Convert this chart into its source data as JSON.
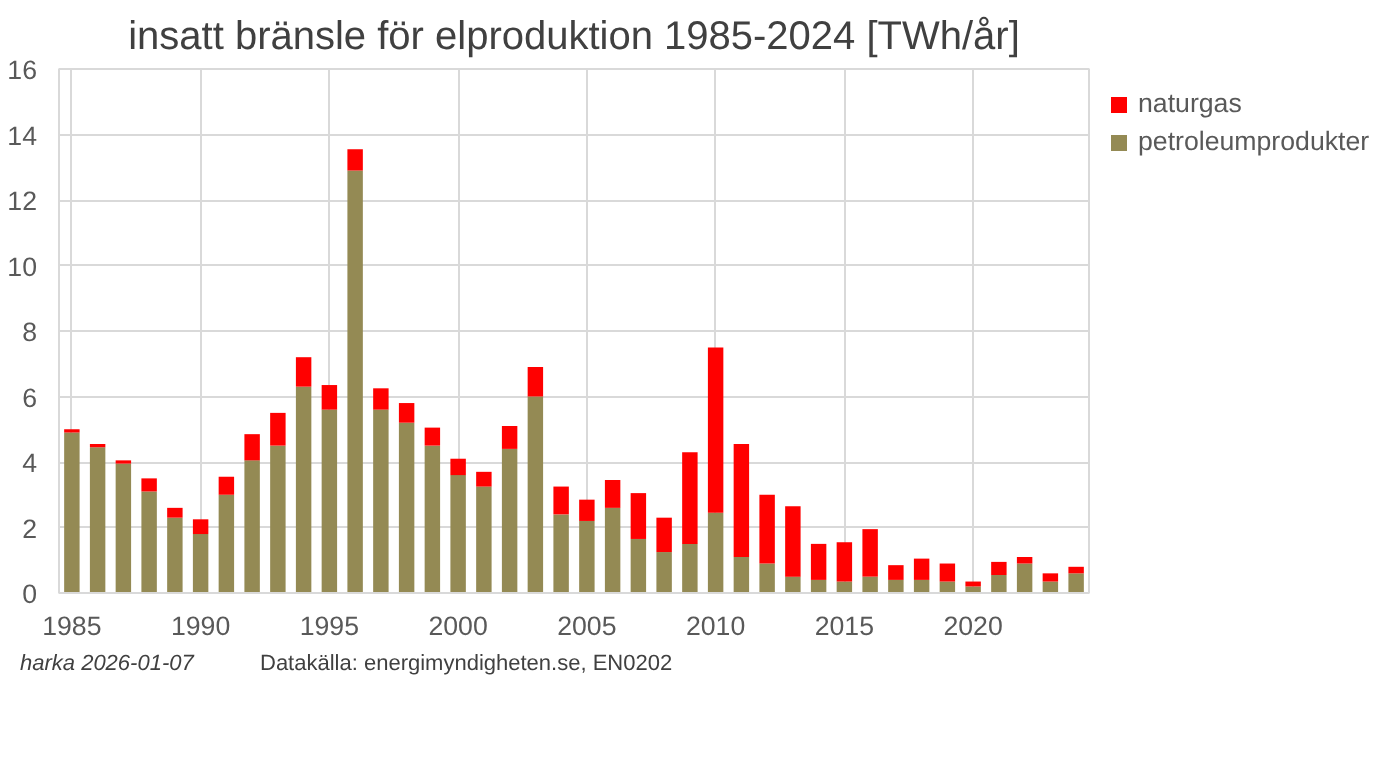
{
  "chart_data": {
    "type": "bar",
    "title": "insatt bränsle för elproduktion 1985-2024 [TWh/år]",
    "x": [
      1985,
      1986,
      1987,
      1988,
      1989,
      1990,
      1991,
      1992,
      1993,
      1994,
      1995,
      1996,
      1997,
      1998,
      1999,
      2000,
      2001,
      2002,
      2003,
      2004,
      2005,
      2006,
      2007,
      2008,
      2009,
      2010,
      2011,
      2012,
      2013,
      2014,
      2015,
      2016,
      2017,
      2018,
      2019,
      2020,
      2021,
      2022,
      2023,
      2024
    ],
    "stacked": true,
    "series": [
      {
        "name": "petroleumprodukter",
        "color": "#948a54",
        "values": [
          4.9,
          4.45,
          3.95,
          3.1,
          2.3,
          1.8,
          3.0,
          4.05,
          4.5,
          6.3,
          5.6,
          12.9,
          5.6,
          5.2,
          4.5,
          3.6,
          3.25,
          4.4,
          6.0,
          2.4,
          2.2,
          2.6,
          1.65,
          1.25,
          1.5,
          2.45,
          1.1,
          0.9,
          0.5,
          0.4,
          0.35,
          0.5,
          0.4,
          0.4,
          0.35,
          0.2,
          0.55,
          0.9,
          0.35,
          0.6
        ]
      },
      {
        "name": "naturgas",
        "color": "#ff0000",
        "values": [
          0.1,
          0.1,
          0.1,
          0.4,
          0.3,
          0.45,
          0.55,
          0.8,
          1.0,
          0.9,
          0.75,
          0.65,
          0.65,
          0.6,
          0.55,
          0.5,
          0.45,
          0.7,
          0.9,
          0.85,
          0.65,
          0.85,
          1.4,
          1.05,
          2.8,
          5.05,
          3.45,
          2.1,
          2.15,
          1.1,
          1.2,
          1.45,
          0.45,
          0.65,
          0.55,
          0.15,
          0.4,
          0.2,
          0.25,
          0.2
        ]
      }
    ],
    "xlim": [
      1984.5,
      2024.5
    ],
    "xticks": [
      1985,
      1990,
      1995,
      2000,
      2005,
      2010,
      2015,
      2020
    ],
    "ylim": [
      0,
      16
    ],
    "yticks": [
      0,
      2,
      4,
      6,
      8,
      10,
      12,
      14,
      16
    ],
    "grid": true,
    "legend": "top right",
    "annotations": [
      "harka 2026-01-07",
      "Datakälla: energimyndigheten.se, EN0202"
    ]
  }
}
